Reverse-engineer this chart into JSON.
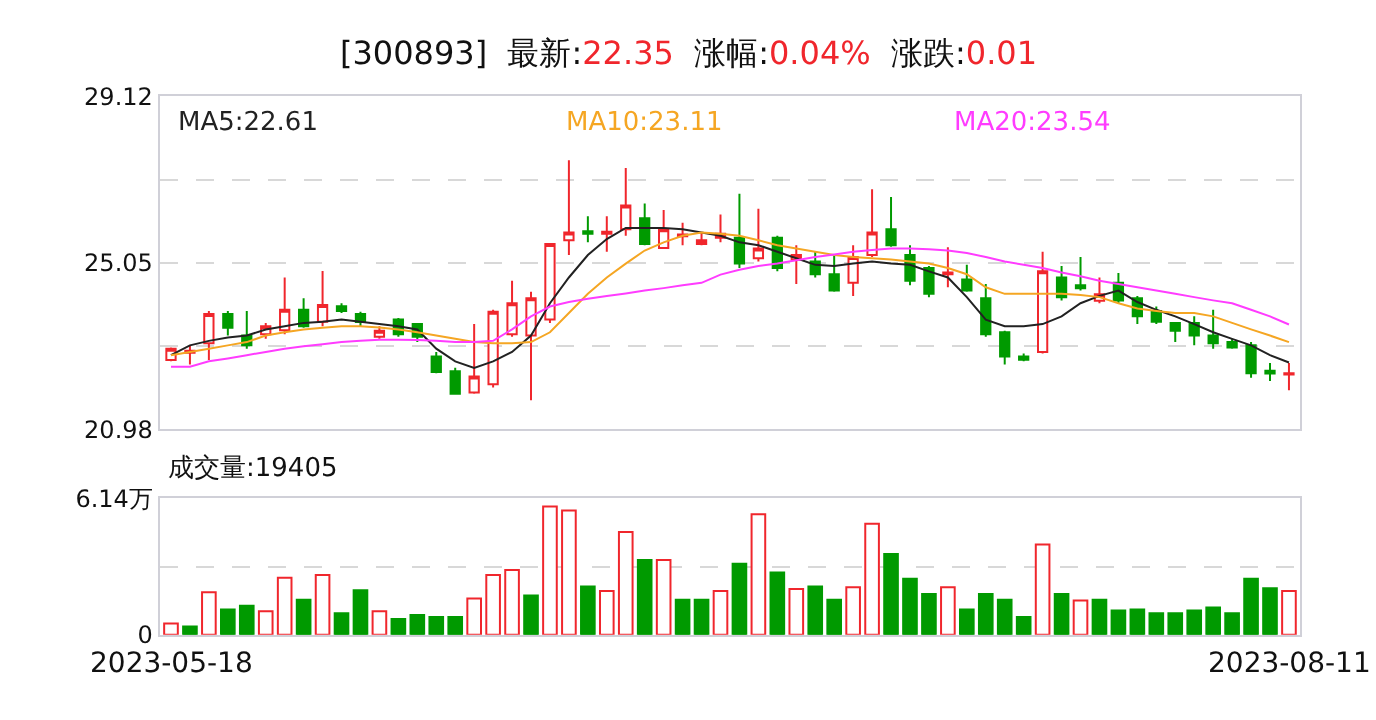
{
  "chart_data": [
    {
      "type": "candlestick",
      "title": "[300893]  最新:22.35  涨幅:0.04%  涨跌:0.01",
      "categories": [
        "2023-05-18",
        null,
        null,
        null,
        null,
        null,
        null,
        null,
        null,
        null,
        null,
        null,
        null,
        null,
        null,
        null,
        null,
        null,
        null,
        null,
        null,
        null,
        null,
        null,
        null,
        null,
        null,
        null,
        null,
        null,
        null,
        null,
        null,
        null,
        null,
        null,
        null,
        null,
        null,
        null,
        null,
        null,
        null,
        null,
        null,
        null,
        null,
        null,
        null,
        null,
        null,
        null,
        null,
        null,
        null,
        null,
        null,
        null,
        null,
        "2023-08-11"
      ],
      "ohlc": [
        [
          22.67,
          22.98,
          22.64,
          22.95
        ],
        [
          22.9,
          23.03,
          22.56,
          22.85
        ],
        [
          23.08,
          23.87,
          22.67,
          23.8
        ],
        [
          23.8,
          23.87,
          23.27,
          23.46
        ],
        [
          23.27,
          23.87,
          22.95,
          23.03
        ],
        [
          23.3,
          23.58,
          23.19,
          23.5
        ],
        [
          23.4,
          24.69,
          23.3,
          23.9
        ],
        [
          23.9,
          24.18,
          23.46,
          23.5
        ],
        [
          23.61,
          24.85,
          23.5,
          24.02
        ],
        [
          23.99,
          24.06,
          23.82,
          23.87
        ],
        [
          23.8,
          23.85,
          23.5,
          23.6
        ],
        [
          23.24,
          23.5,
          23.19,
          23.39
        ],
        [
          23.66,
          23.7,
          23.24,
          23.3
        ],
        [
          23.55,
          23.58,
          23.11,
          23.24
        ],
        [
          22.76,
          22.87,
          22.35,
          22.38
        ],
        [
          22.4,
          22.48,
          21.82,
          21.85
        ],
        [
          21.88,
          23.55,
          21.85,
          22.27
        ],
        [
          22.08,
          23.9,
          22.0,
          23.85
        ],
        [
          23.3,
          24.61,
          23.24,
          24.06
        ],
        [
          23.27,
          24.34,
          21.69,
          24.18
        ],
        [
          23.66,
          25.51,
          23.58,
          25.51
        ],
        [
          25.6,
          27.56,
          25.24,
          25.79
        ],
        [
          25.82,
          26.19,
          25.55,
          25.76
        ],
        [
          25.76,
          26.19,
          25.32,
          25.81
        ],
        [
          25.87,
          27.37,
          25.71,
          26.45
        ],
        [
          26.14,
          26.5,
          25.48,
          25.51
        ],
        [
          25.41,
          26.34,
          25.41,
          25.87
        ],
        [
          25.7,
          26.03,
          25.48,
          25.74
        ],
        [
          25.51,
          25.79,
          25.48,
          25.6
        ],
        [
          25.66,
          26.23,
          25.55,
          25.76
        ],
        [
          25.66,
          26.74,
          24.92,
          25.03
        ],
        [
          25.16,
          26.37,
          25.08,
          25.4
        ],
        [
          25.66,
          25.71,
          24.84,
          24.92
        ],
        [
          25.13,
          25.48,
          24.53,
          25.24
        ],
        [
          25.08,
          25.32,
          24.69,
          24.77
        ],
        [
          24.77,
          25.24,
          24.34,
          24.37
        ],
        [
          24.56,
          25.48,
          24.24,
          25.19
        ],
        [
          25.24,
          26.85,
          25.19,
          25.79
        ],
        [
          25.87,
          26.66,
          25.44,
          25.48
        ],
        [
          25.24,
          25.48,
          24.5,
          24.61
        ],
        [
          24.92,
          24.97,
          24.21,
          24.29
        ],
        [
          24.77,
          25.43,
          24.45,
          24.81
        ],
        [
          24.64,
          25.0,
          24.34,
          24.37
        ],
        [
          24.18,
          24.53,
          23.24,
          23.3
        ],
        [
          23.35,
          23.39,
          22.56,
          22.76
        ],
        [
          22.76,
          22.83,
          22.64,
          22.68
        ],
        [
          22.87,
          25.32,
          22.83,
          24.84
        ],
        [
          24.69,
          24.97,
          24.13,
          24.21
        ],
        [
          24.5,
          25.19,
          24.37,
          24.43
        ],
        [
          24.12,
          24.69,
          24.06,
          24.28
        ],
        [
          24.56,
          24.8,
          24.06,
          24.13
        ],
        [
          24.18,
          24.24,
          23.55,
          23.74
        ],
        [
          23.87,
          23.98,
          23.55,
          23.61
        ],
        [
          23.58,
          23.58,
          23.11,
          23.39
        ],
        [
          23.58,
          23.74,
          23.03,
          23.27
        ],
        [
          23.27,
          23.9,
          22.95,
          23.08
        ],
        [
          23.11,
          23.19,
          22.95,
          22.98
        ],
        [
          23.03,
          23.11,
          22.24,
          22.35
        ],
        [
          22.41,
          22.6,
          22.16,
          22.34
        ],
        [
          22.32,
          22.6,
          21.93,
          22.35
        ]
      ],
      "colors": [
        "#f0262c",
        "#f0262c",
        "#f0262c",
        "#009a00",
        "#009a00",
        "#f0262c",
        "#f0262c",
        "#009a00",
        "#f0262c",
        "#009a00",
        "#009a00",
        "#f0262c",
        "#009a00",
        "#009a00",
        "#009a00",
        "#009a00",
        "#f0262c",
        "#f0262c",
        "#f0262c",
        "#f0262c",
        "#f0262c",
        "#f0262c",
        "#009a00",
        "#f0262c",
        "#f0262c",
        "#009a00",
        "#f0262c",
        "#f0262c",
        "#f0262c",
        "#f0262c",
        "#009a00",
        "#f0262c",
        "#009a00",
        "#f0262c",
        "#009a00",
        "#009a00",
        "#f0262c",
        "#f0262c",
        "#009a00",
        "#009a00",
        "#009a00",
        "#f0262c",
        "#009a00",
        "#009a00",
        "#009a00",
        "#009a00",
        "#f0262c",
        "#009a00",
        "#009a00",
        "#f0262c",
        "#009a00",
        "#009a00",
        "#009a00",
        "#009a00",
        "#009a00",
        "#009a00",
        "#009a00",
        "#009a00",
        "#009a00",
        "#f0262c"
      ],
      "series": [
        {
          "type": "line",
          "name": "MA5:22.61",
          "color": "#222222",
          "values": [
            22.79,
            23.03,
            23.14,
            23.22,
            23.27,
            23.42,
            23.5,
            23.58,
            23.61,
            23.66,
            23.61,
            23.55,
            23.5,
            23.42,
            22.95,
            22.64,
            22.48,
            22.64,
            22.87,
            23.27,
            24.06,
            24.69,
            25.24,
            25.63,
            25.9,
            25.9,
            25.9,
            25.87,
            25.79,
            25.71,
            25.55,
            25.48,
            25.32,
            25.16,
            25.0,
            24.97,
            25.03,
            25.08,
            25.03,
            25.0,
            24.84,
            24.69,
            24.21,
            23.66,
            23.5,
            23.5,
            23.55,
            23.74,
            24.06,
            24.24,
            24.37,
            24.09,
            23.9,
            23.74,
            23.55,
            23.35,
            23.19,
            23.03,
            22.79,
            22.61
          ]
        },
        {
          "type": "line",
          "name": "MA10:23.11",
          "color": "#f5a623",
          "values": [
            22.79,
            22.87,
            22.95,
            23.03,
            23.11,
            23.27,
            23.35,
            23.42,
            23.46,
            23.5,
            23.5,
            23.47,
            23.42,
            23.35,
            23.27,
            23.19,
            23.11,
            23.08,
            23.08,
            23.11,
            23.35,
            23.82,
            24.29,
            24.69,
            25.03,
            25.35,
            25.55,
            25.71,
            25.79,
            25.76,
            25.71,
            25.6,
            25.48,
            25.4,
            25.32,
            25.24,
            25.19,
            25.16,
            25.13,
            25.08,
            25.03,
            24.92,
            24.77,
            24.45,
            24.29,
            24.29,
            24.29,
            24.29,
            24.26,
            24.21,
            24.06,
            23.93,
            23.87,
            23.82,
            23.82,
            23.74,
            23.58,
            23.42,
            23.27,
            23.11
          ]
        },
        {
          "type": "line",
          "name": "MA20:23.54",
          "color": "#ff3cff",
          "values": [
            22.51,
            22.51,
            22.64,
            22.71,
            22.79,
            22.87,
            22.95,
            23.01,
            23.06,
            23.11,
            23.14,
            23.17,
            23.17,
            23.16,
            23.14,
            23.11,
            23.11,
            23.14,
            23.42,
            23.74,
            23.98,
            24.09,
            24.17,
            24.24,
            24.3,
            24.37,
            24.43,
            24.5,
            24.56,
            24.76,
            24.88,
            24.97,
            25.03,
            25.11,
            25.19,
            25.25,
            25.32,
            25.36,
            25.4,
            25.4,
            25.38,
            25.35,
            25.29,
            25.19,
            25.08,
            25.0,
            24.92,
            24.81,
            24.72,
            24.61,
            24.53,
            24.45,
            24.37,
            24.29,
            24.21,
            24.13,
            24.06,
            23.9,
            23.74,
            23.54
          ]
        }
      ],
      "ylim": [
        20.98,
        29.12
      ],
      "yticks": [
        20.98,
        {
          "value": 23.015,
          "label": null
        },
        25.05,
        {
          "value": 27.085,
          "label": null
        },
        29.12
      ],
      "grid": "y",
      "tick_labels": "y",
      "legend": false
    },
    {
      "type": "bar",
      "title": "成交量:19405",
      "categories": [
        "2023-05-18",
        null,
        null,
        null,
        null,
        null,
        null,
        null,
        null,
        null,
        null,
        null,
        null,
        null,
        null,
        null,
        null,
        null,
        null,
        null,
        null,
        null,
        null,
        null,
        null,
        null,
        null,
        null,
        null,
        null,
        null,
        null,
        null,
        null,
        null,
        null,
        null,
        null,
        null,
        null,
        null,
        null,
        null,
        null,
        null,
        null,
        null,
        null,
        null,
        null,
        null,
        null,
        null,
        null,
        null,
        null,
        null,
        null,
        null,
        "2023-08-11"
      ],
      "values": [
        0.51,
        0.37,
        1.91,
        1.14,
        1.31,
        1.06,
        2.57,
        1.57,
        2.69,
        0.97,
        2.0,
        1.06,
        0.71,
        0.89,
        0.8,
        0.8,
        1.63,
        2.69,
        2.92,
        1.77,
        5.77,
        5.6,
        2.17,
        1.97,
        4.63,
        3.37,
        3.37,
        1.57,
        1.57,
        1.97,
        3.2,
        5.43,
        2.8,
        2.06,
        2.17,
        1.57,
        2.14,
        5.0,
        3.63,
        2.52,
        1.83,
        2.14,
        1.14,
        1.83,
        1.57,
        0.8,
        4.06,
        1.83,
        1.54,
        1.57,
        1.09,
        1.14,
        0.97,
        0.97,
        1.09,
        1.23,
        0.97,
        2.52,
        2.09,
        1.97
      ],
      "colors": [
        "#f0262c",
        "#009a00",
        "#f0262c",
        "#009a00",
        "#009a00",
        "#f0262c",
        "#f0262c",
        "#009a00",
        "#f0262c",
        "#009a00",
        "#009a00",
        "#f0262c",
        "#009a00",
        "#009a00",
        "#009a00",
        "#009a00",
        "#f0262c",
        "#f0262c",
        "#f0262c",
        "#009a00",
        "#f0262c",
        "#f0262c",
        "#009a00",
        "#f0262c",
        "#f0262c",
        "#009a00",
        "#f0262c",
        "#009a00",
        "#009a00",
        "#f0262c",
        "#009a00",
        "#f0262c",
        "#009a00",
        "#f0262c",
        "#009a00",
        "#009a00",
        "#f0262c",
        "#f0262c",
        "#009a00",
        "#009a00",
        "#009a00",
        "#f0262c",
        "#009a00",
        "#009a00",
        "#009a00",
        "#009a00",
        "#f0262c",
        "#009a00",
        "#f0262c",
        "#009a00",
        "#009a00",
        "#009a00",
        "#009a00",
        "#009a00",
        "#009a00",
        "#009a00",
        "#009a00",
        "#009a00",
        "#009a00",
        "#f0262c"
      ],
      "ylim": [
        0,
        6.14
      ],
      "yticks": [
        0,
        {
          "value": 3.07,
          "label": null
        },
        {
          "value": 6.14,
          "label": "6.14万"
        }
      ],
      "grid": "y",
      "legend": false
    }
  ]
}
